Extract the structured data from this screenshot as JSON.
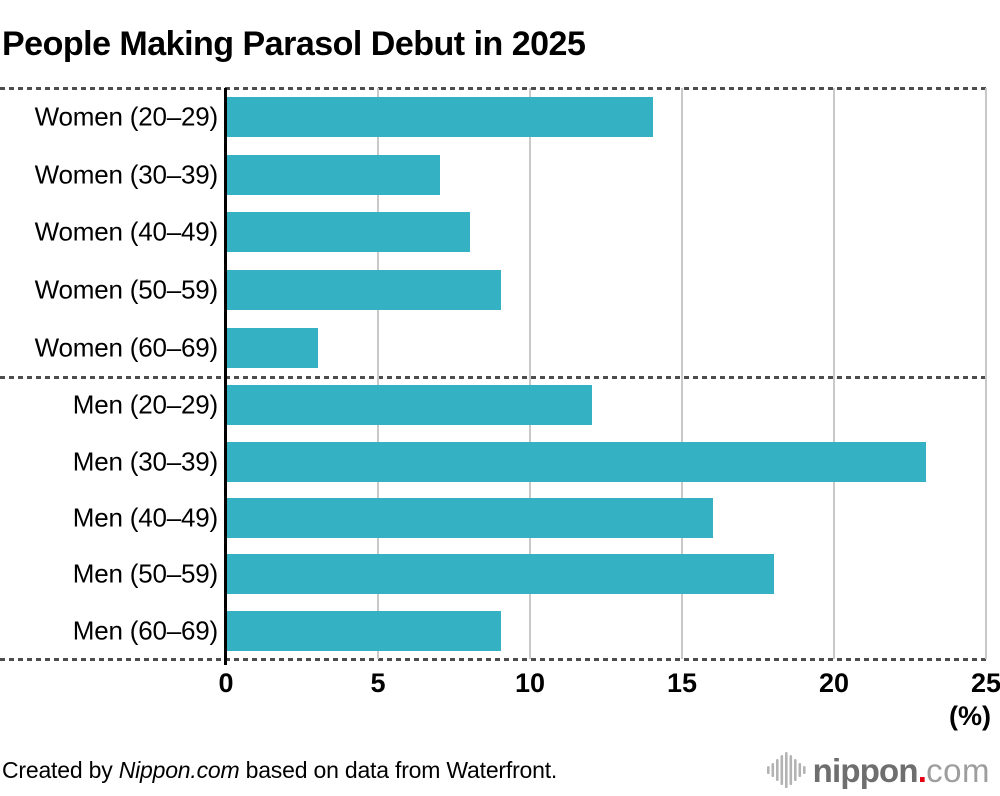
{
  "title": "People Making Parasol Debut in 2025",
  "chart_data": {
    "type": "bar",
    "orientation": "horizontal",
    "title": "People Making Parasol Debut in 2025",
    "xlabel": "(%)",
    "ylabel": "",
    "xlim": [
      0,
      25
    ],
    "x_ticks": [
      "0",
      "5",
      "10",
      "15",
      "20",
      "25"
    ],
    "x_tick_values": [
      0,
      5,
      10,
      15,
      20,
      25
    ],
    "grid": true,
    "legend": "none",
    "bar_color": "#34b2c3",
    "gridline_color": "#c9c9c9",
    "groups": [
      {
        "name": "women",
        "categories": [
          "Women (20–29)",
          "Women (30–39)",
          "Women (40–49)",
          "Women (50–59)",
          "Women (60–69)"
        ],
        "values": [
          14,
          7,
          8,
          9,
          3
        ]
      },
      {
        "name": "men",
        "categories": [
          "Men (20–29)",
          "Men (30–39)",
          "Men (40–49)",
          "Men (50–59)",
          "Men (60–69)"
        ],
        "values": [
          12,
          23,
          16,
          18,
          9
        ]
      }
    ]
  },
  "footer": {
    "credit_prefix": "Created by ",
    "credit_source": "Nippon.com",
    "credit_suffix": " based on data from Waterfront.",
    "logo": {
      "icon": "equalizer-bars-icon",
      "word": "nippon",
      "dot": ".",
      "suffix": "com",
      "word_color": "#6e6e6e",
      "dot_color": "#e60012",
      "suffix_color": "#9e9e9e",
      "icon_color": "#b3b3b3"
    }
  }
}
